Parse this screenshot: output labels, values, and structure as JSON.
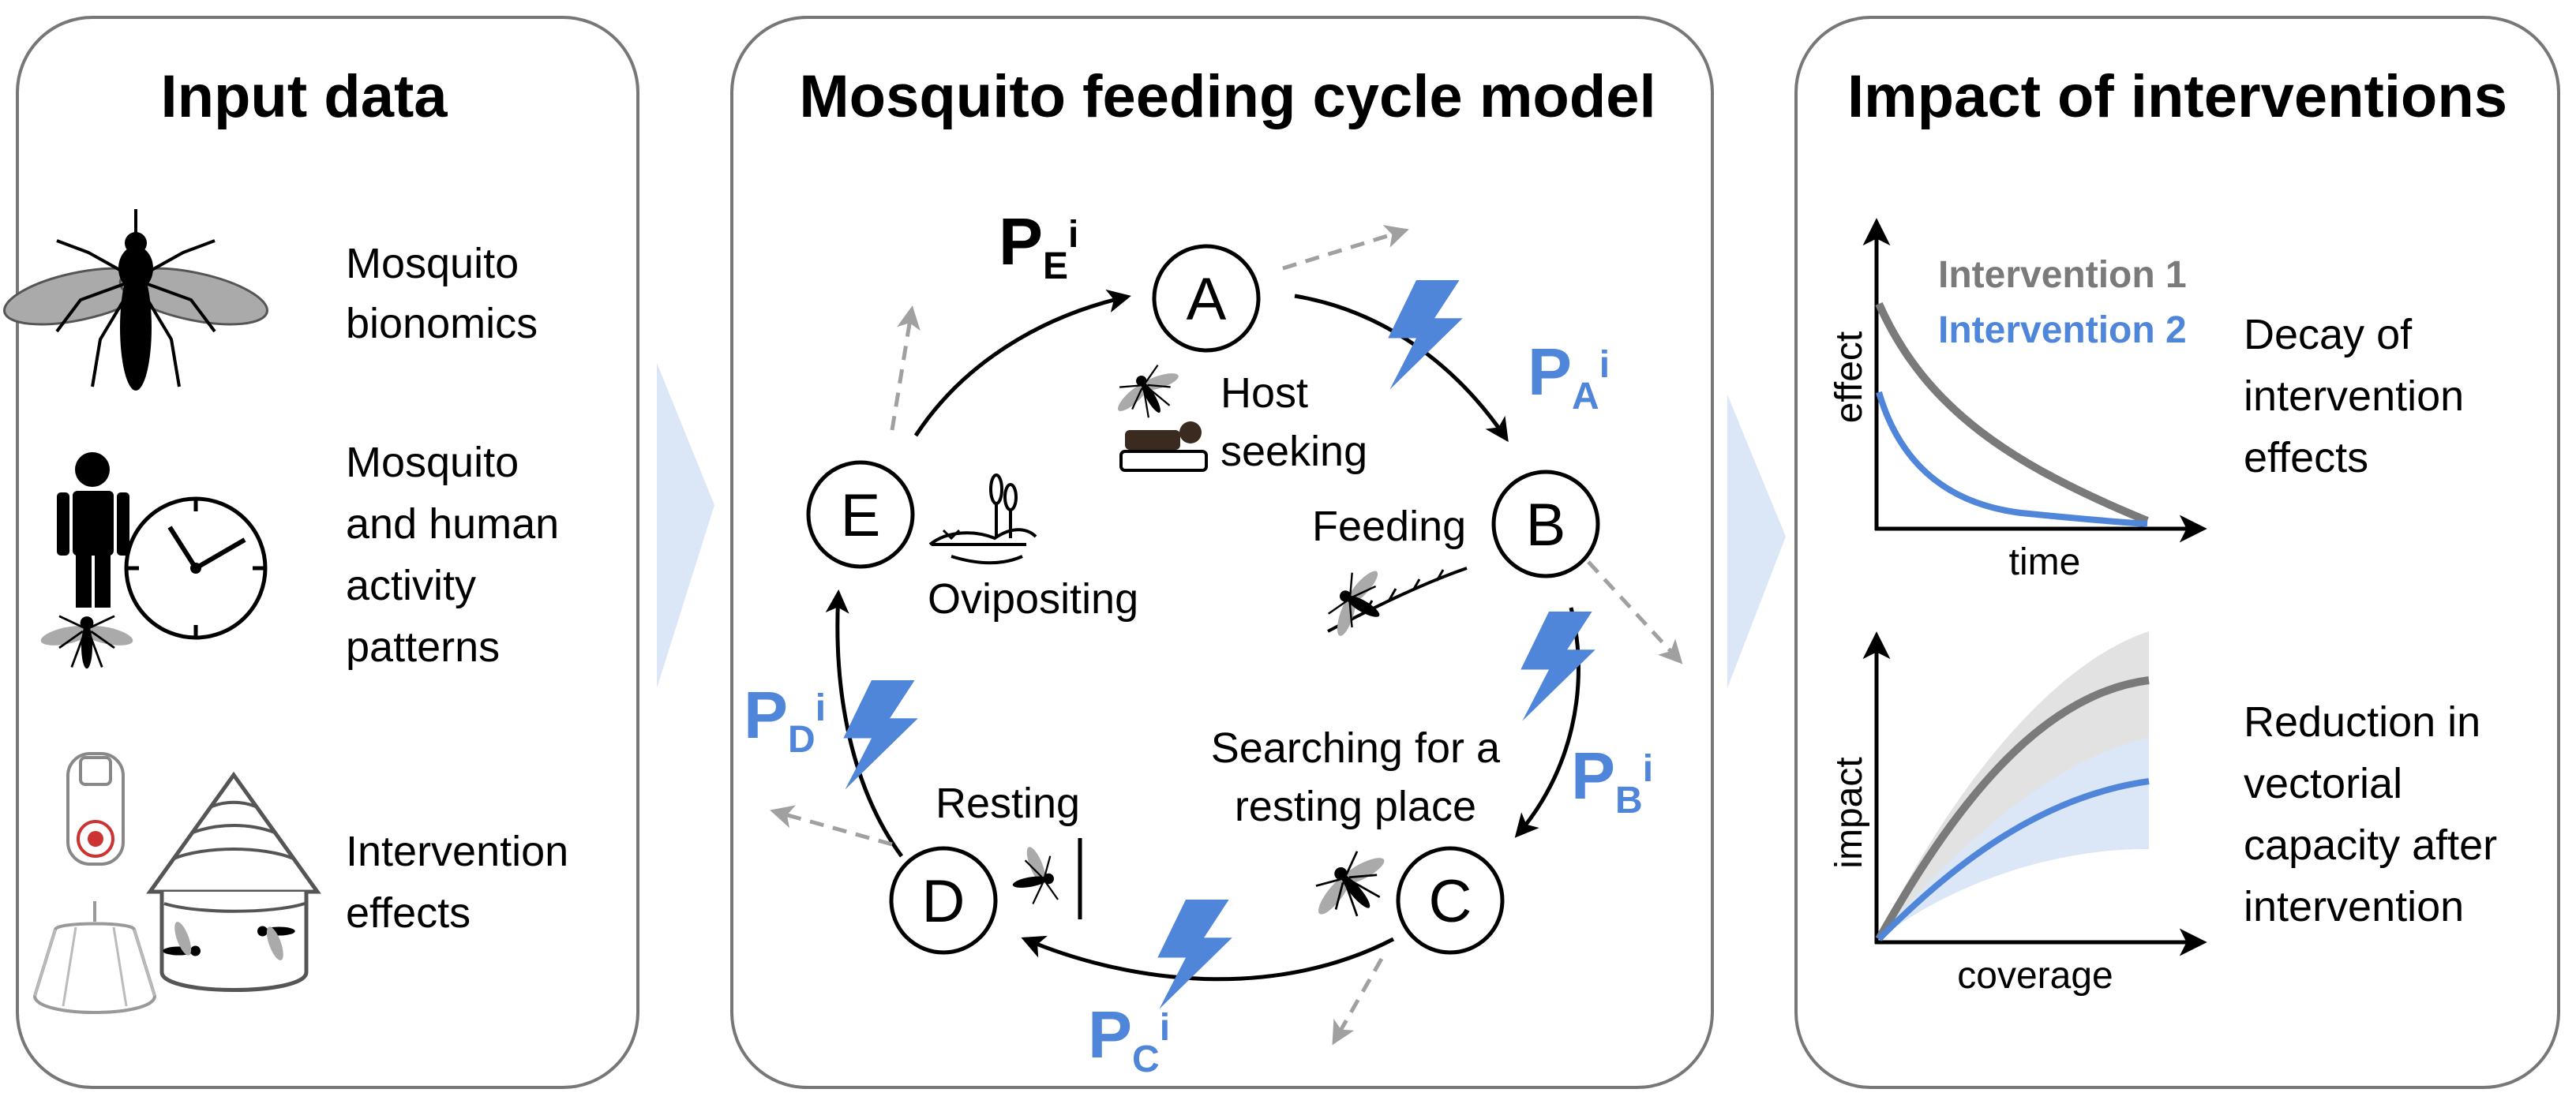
{
  "panels": {
    "input": {
      "title": "Input data",
      "items": [
        {
          "lines": [
            "Mosquito",
            "bionomics"
          ],
          "icon": "mosquito-icon"
        },
        {
          "lines": [
            "Mosquito",
            "and human",
            "activity",
            "patterns"
          ],
          "icon": "human-clock-icon"
        },
        {
          "lines": [
            "Intervention",
            "effects"
          ],
          "icon": "house-net-spray-icon"
        }
      ]
    },
    "model": {
      "title": "Mosquito feeding cycle model",
      "nodes": {
        "A": "A",
        "B": "B",
        "C": "C",
        "D": "D",
        "E": "E"
      },
      "stages": {
        "host": [
          "Host",
          "seeking"
        ],
        "feeding": "Feeding",
        "searching": [
          "Searching for a",
          "resting place"
        ],
        "resting": "Resting",
        "ovipositing": "Ovipositing"
      },
      "probabilities": {
        "E": {
          "base": "P",
          "sub": "E",
          "sup": "i"
        },
        "A": {
          "base": "P",
          "sub": "A",
          "sup": "i"
        },
        "B": {
          "base": "P",
          "sub": "B",
          "sup": "i"
        },
        "C": {
          "base": "P",
          "sub": "C",
          "sup": "i"
        },
        "D": {
          "base": "P",
          "sub": "D",
          "sup": "i"
        }
      }
    },
    "impact": {
      "title": "Impact of interventions",
      "decay": {
        "label": [
          "Decay of",
          "intervention",
          "effects"
        ],
        "xlabel": "time",
        "ylabel": "effect",
        "legend": [
          "Intervention 1",
          "Intervention 2"
        ]
      },
      "reduction": {
        "label": [
          "Reduction in",
          "vectorial",
          "capacity after",
          "intervention"
        ],
        "xlabel": "coverage",
        "ylabel": "impact"
      }
    }
  },
  "colors": {
    "blue": "#4f86d9",
    "gray": "#7a7a7a",
    "lightgray": "#a0a0a0",
    "chevron": "#dbe6f7",
    "panel_border": "#777777"
  }
}
